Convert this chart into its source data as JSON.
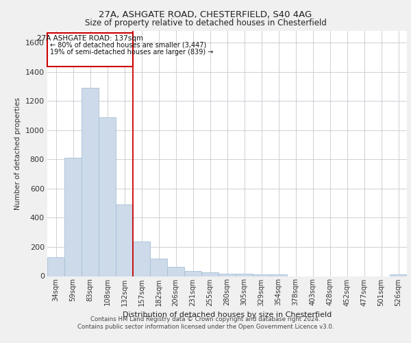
{
  "title_line1": "27A, ASHGATE ROAD, CHESTERFIELD, S40 4AG",
  "title_line2": "Size of property relative to detached houses in Chesterfield",
  "xlabel": "Distribution of detached houses by size in Chesterfield",
  "ylabel": "Number of detached properties",
  "categories": [
    "34sqm",
    "59sqm",
    "83sqm",
    "108sqm",
    "132sqm",
    "157sqm",
    "182sqm",
    "206sqm",
    "231sqm",
    "255sqm",
    "280sqm",
    "305sqm",
    "329sqm",
    "354sqm",
    "378sqm",
    "403sqm",
    "428sqm",
    "452sqm",
    "477sqm",
    "501sqm",
    "526sqm"
  ],
  "values": [
    130,
    810,
    1290,
    1090,
    490,
    235,
    120,
    65,
    35,
    25,
    15,
    15,
    10,
    10,
    0,
    0,
    0,
    0,
    0,
    0,
    10
  ],
  "bar_color": "#ccdaea",
  "bar_edge_color": "#a8c0d6",
  "annotation_title": "27A ASHGATE ROAD: 137sqm",
  "annotation_line1": "← 80% of detached houses are smaller (3,447)",
  "annotation_line2": "19% of semi-detached houses are larger (839) →",
  "ylim": [
    0,
    1680
  ],
  "yticks": [
    0,
    200,
    400,
    600,
    800,
    1000,
    1200,
    1400,
    1600
  ],
  "footnote1": "Contains HM Land Registry data © Crown copyright and database right 2024.",
  "footnote2": "Contains public sector information licensed under the Open Government Licence v3.0.",
  "background_color": "#f0f0f0",
  "plot_bg_color": "#ffffff",
  "grid_color": "#c8c8d0"
}
